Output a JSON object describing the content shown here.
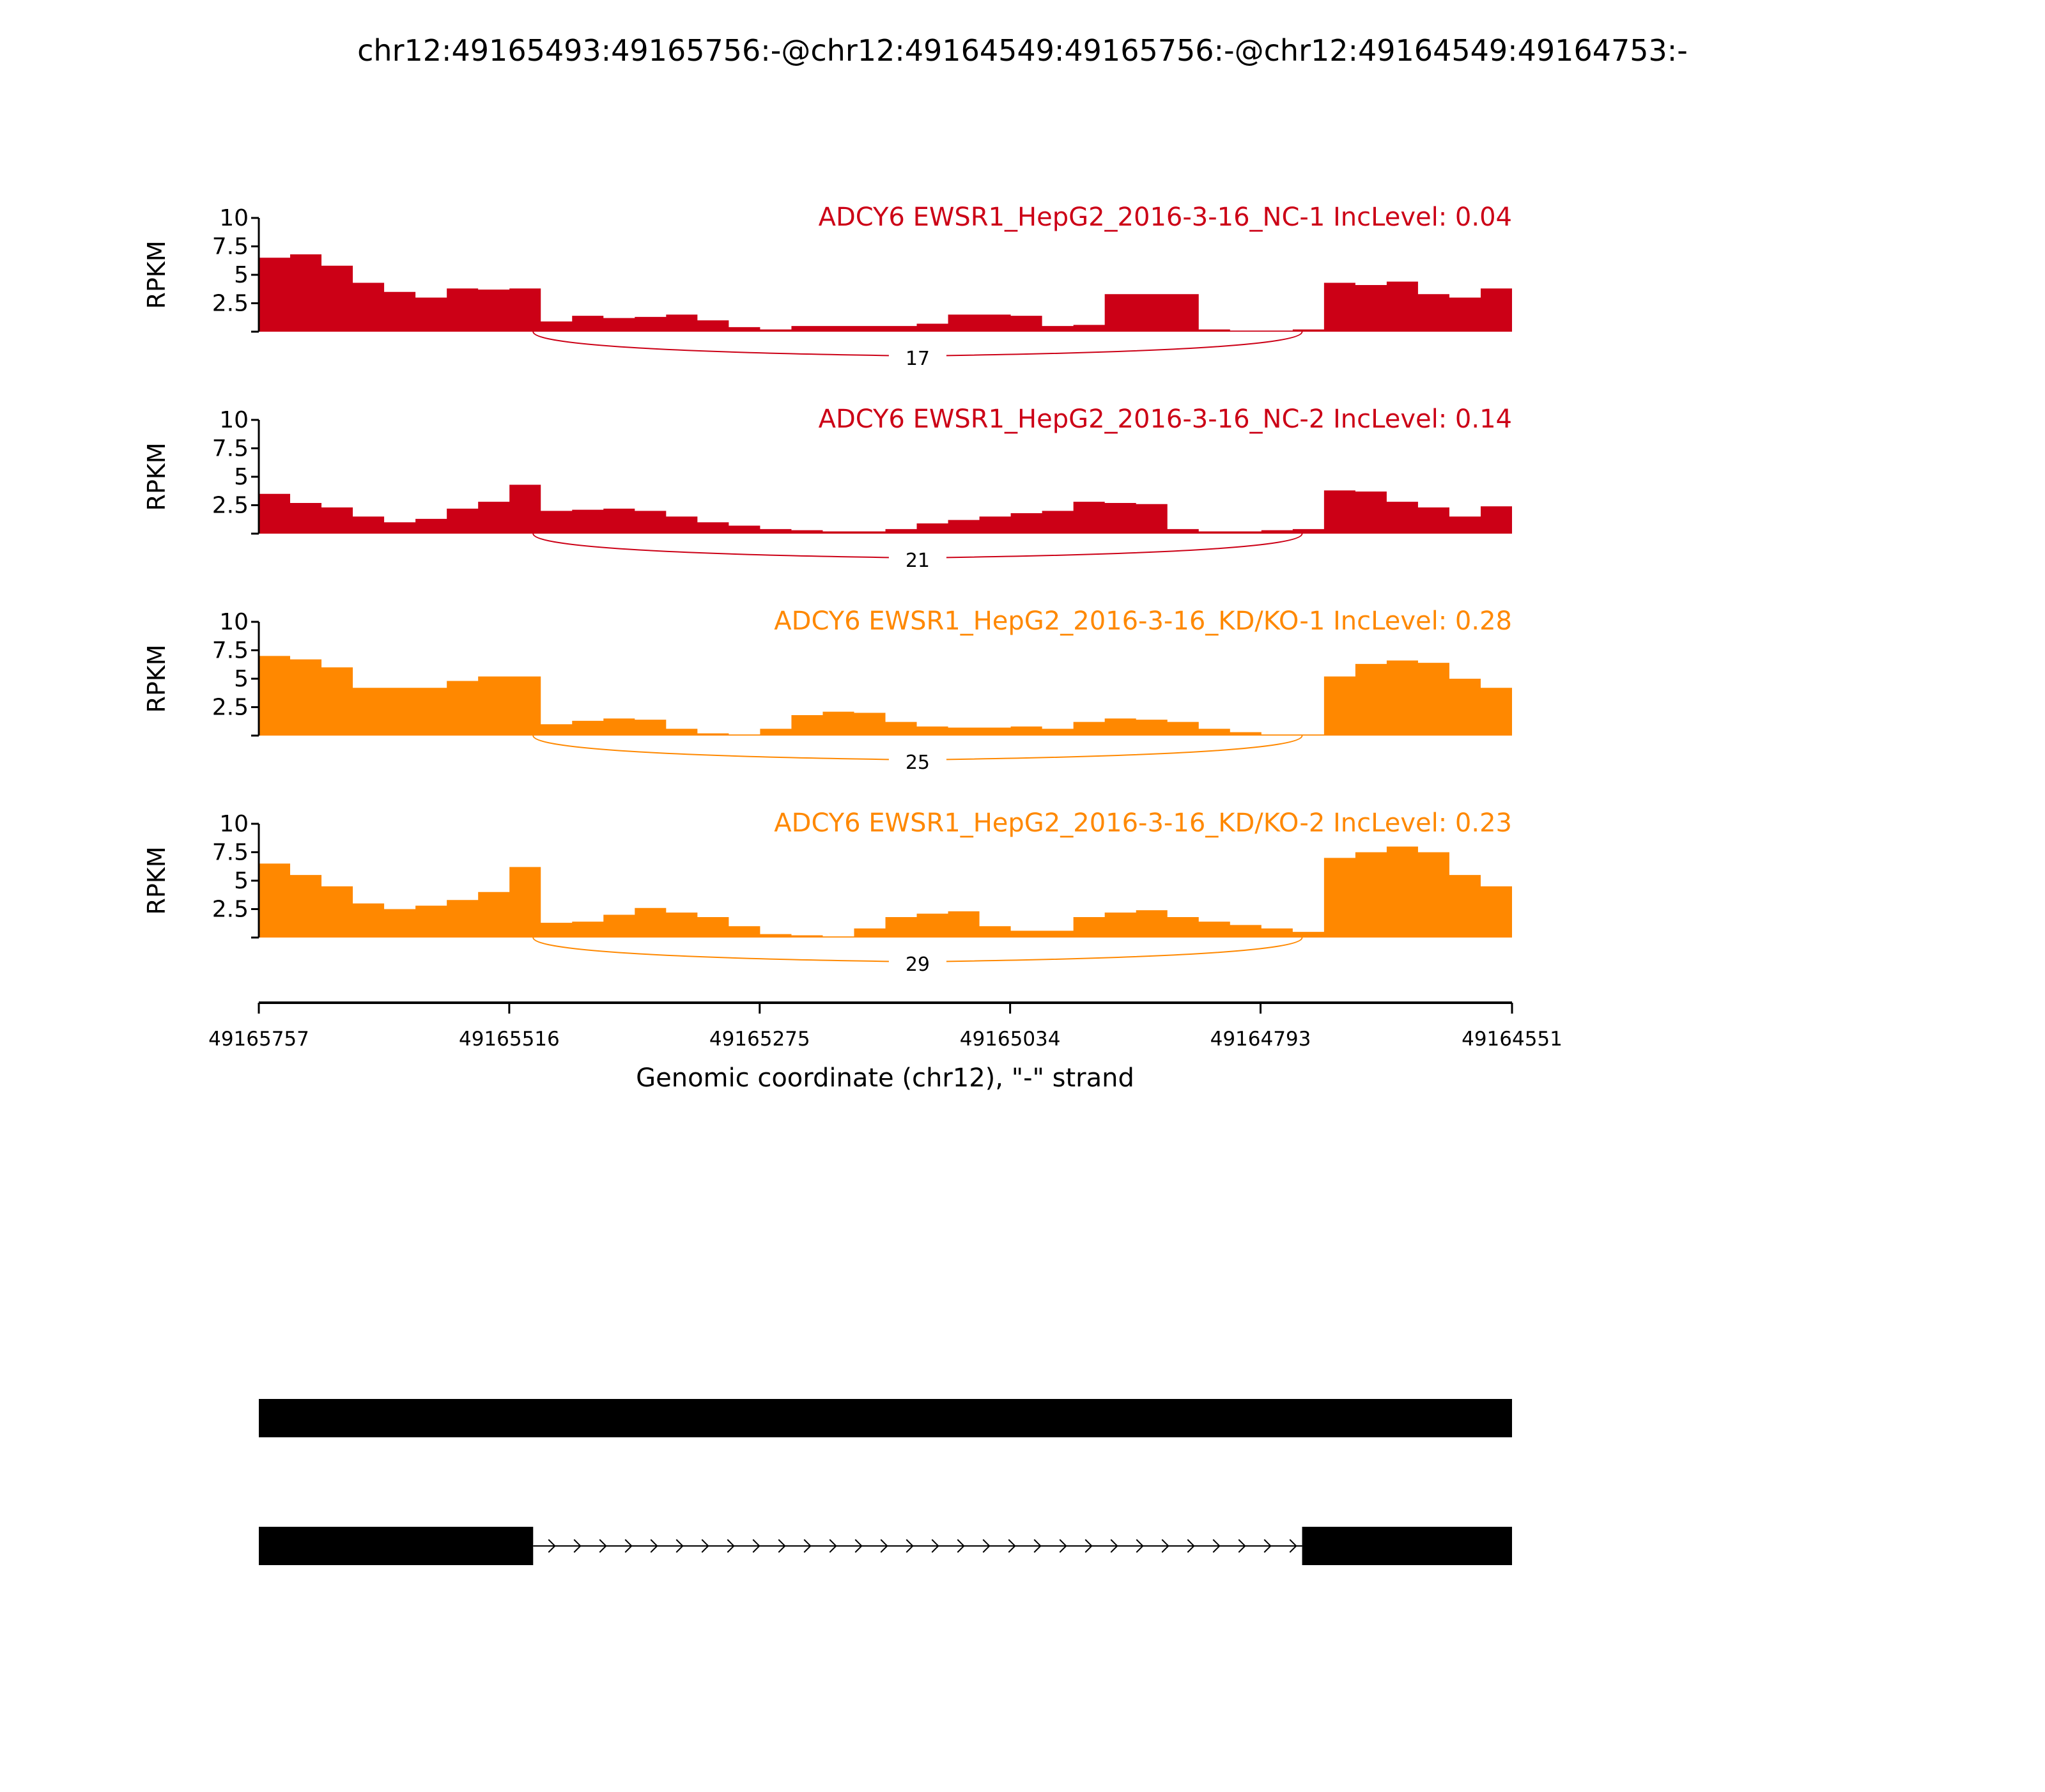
{
  "chart_data": {
    "type": "area",
    "title": "chr12:49165493:49165756:-@chr12:49164549:49165756:-@chr12:49164549:49164753:-",
    "xlabel": "Genomic coordinate (chr12), \"-\" strand",
    "ylabel": "RPKM",
    "xlim": [
      49165757,
      49164551
    ],
    "x_ticks": [
      "49165757",
      "49165516",
      "49165275",
      "49165034",
      "49164793",
      "49164551"
    ],
    "ylim": [
      0,
      10
    ],
    "y_ticks": [
      "2.5",
      "5",
      "7.5",
      "10"
    ],
    "bins": 40,
    "colors": {
      "NC": "#cc0016",
      "KD": "#ff8800"
    },
    "panels": [
      {
        "label": "ADCY6 EWSR1_HepG2_2016-3-16_NC-1 IncLevel: 0.04",
        "group": "NC",
        "junction": {
          "from": 49165493,
          "to": 49164753,
          "count": "17"
        },
        "coverage": [
          6.5,
          6.8,
          5.8,
          4.3,
          3.5,
          3,
          3.8,
          3.7,
          3.8,
          0.9,
          1.4,
          1.2,
          1.3,
          1.5,
          1.0,
          0.4,
          0.2,
          0.5,
          0.5,
          0.5,
          0.5,
          0.7,
          1.5,
          1.5,
          1.4,
          0.5,
          0.6,
          3.3,
          3.3,
          3.3,
          0.2,
          0.1,
          0.1,
          0.2,
          4.3,
          4.1,
          4.4,
          3.3,
          3.0,
          3.8
        ]
      },
      {
        "label": "ADCY6 EWSR1_HepG2_2016-3-16_NC-2 IncLevel: 0.14",
        "group": "NC",
        "junction": {
          "from": 49165493,
          "to": 49164753,
          "count": "21"
        },
        "coverage": [
          3.5,
          2.7,
          2.3,
          1.5,
          1.0,
          1.3,
          2.2,
          2.8,
          4.3,
          2.0,
          2.1,
          2.2,
          2.0,
          1.5,
          1.0,
          0.7,
          0.4,
          0.3,
          0.2,
          0.2,
          0.4,
          0.9,
          1.2,
          1.5,
          1.8,
          2.0,
          2.8,
          2.7,
          2.6,
          0.4,
          0.2,
          0.2,
          0.3,
          0.4,
          3.8,
          3.7,
          2.8,
          2.3,
          1.5,
          2.4
        ]
      },
      {
        "label": "ADCY6 EWSR1_HepG2_2016-3-16_KD/KO-1 IncLevel: 0.28",
        "group": "KD",
        "junction": {
          "from": 49165493,
          "to": 49164753,
          "count": "25"
        },
        "coverage": [
          7,
          6.7,
          6,
          4.2,
          4.2,
          4.2,
          4.8,
          5.2,
          5.2,
          1.0,
          1.3,
          1.5,
          1.4,
          0.6,
          0.2,
          0.1,
          0.6,
          1.8,
          2.1,
          2.0,
          1.2,
          0.8,
          0.7,
          0.7,
          0.8,
          0.6,
          1.2,
          1.5,
          1.4,
          1.2,
          0.6,
          0.3,
          0.1,
          0.1,
          5.2,
          6.3,
          6.6,
          6.4,
          5.0,
          4.2
        ]
      },
      {
        "label": "ADCY6 EWSR1_HepG2_2016-3-16_KD/KO-2 IncLevel: 0.23",
        "group": "KD",
        "junction": {
          "from": 49165493,
          "to": 49164753,
          "count": "29"
        },
        "coverage": [
          6.5,
          5.5,
          4.5,
          3,
          2.5,
          2.8,
          3.3,
          4,
          6.2,
          1.3,
          1.4,
          2.0,
          2.6,
          2.2,
          1.8,
          1.0,
          0.3,
          0.2,
          0.1,
          0.8,
          1.8,
          2.1,
          2.3,
          1.0,
          0.6,
          0.6,
          1.8,
          2.2,
          2.4,
          1.8,
          1.4,
          1.1,
          0.8,
          0.5,
          7.0,
          7.5,
          8,
          7.5,
          5.5,
          4.5
        ]
      }
    ],
    "gene_models": [
      {
        "exons": [
          [
            49165757,
            49164551
          ]
        ]
      },
      {
        "exons": [
          [
            49165757,
            49165493
          ],
          [
            49164753,
            49164551
          ]
        ]
      }
    ]
  }
}
